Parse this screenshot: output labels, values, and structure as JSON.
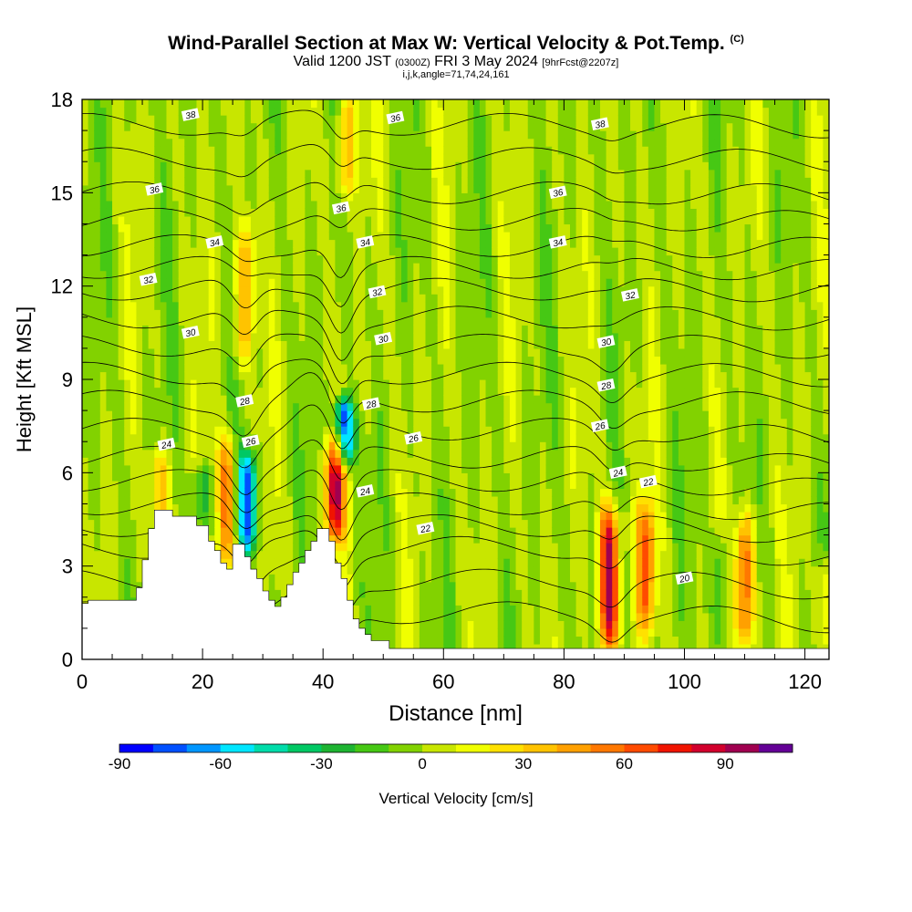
{
  "title": {
    "main": "Wind-Parallel Section at Max W: Vertical Velocity & Pot.Temp.",
    "copyright": "(C)",
    "valid_a": "Valid 1200 JST",
    "valid_utc": "(0300Z)",
    "valid_b": "FRI 3 May 2024",
    "forecast": "[9hrFcst@2207z]",
    "indices": "i,j,k,angle=71,74,24,161"
  },
  "chart_data": {
    "type": "heatmap",
    "xlabel": "Distance [nm]",
    "ylabel": "Height [Kft MSL]",
    "xlim": [
      0,
      124
    ],
    "ylim": [
      0,
      18
    ],
    "x_ticks": [
      0,
      20,
      40,
      60,
      80,
      100,
      120
    ],
    "y_ticks": [
      0,
      3,
      6,
      9,
      12,
      15,
      18
    ],
    "colorbar": {
      "label": "Vertical Velocity [cm/s]",
      "min": -90,
      "max": 110,
      "step": 10,
      "tick_values": [
        -90,
        -60,
        -30,
        0,
        30,
        60,
        90
      ],
      "colors": [
        "#0000ff",
        "#0050ff",
        "#0096ff",
        "#00e6ff",
        "#00dcaa",
        "#00c864",
        "#1eb432",
        "#46c814",
        "#82d200",
        "#c8e600",
        "#f0ff00",
        "#ffe100",
        "#ffc300",
        "#ffa000",
        "#ff7800",
        "#ff4b00",
        "#f01400",
        "#d2002d",
        "#a00050",
        "#640096"
      ]
    },
    "theta_contours_K": [
      20,
      22,
      24,
      26,
      28,
      30,
      32,
      34,
      36,
      38
    ],
    "theta_labels": [
      {
        "x": 18,
        "y": 17.5,
        "text": "38"
      },
      {
        "x": 52,
        "y": 17.4,
        "text": "36"
      },
      {
        "x": 86,
        "y": 17.2,
        "text": "38"
      },
      {
        "x": 12,
        "y": 15.1,
        "text": "36"
      },
      {
        "x": 43,
        "y": 14.5,
        "text": "36"
      },
      {
        "x": 79,
        "y": 15.0,
        "text": "36"
      },
      {
        "x": 22,
        "y": 13.4,
        "text": "34"
      },
      {
        "x": 47,
        "y": 13.4,
        "text": "34"
      },
      {
        "x": 79,
        "y": 13.4,
        "text": "34"
      },
      {
        "x": 11,
        "y": 12.2,
        "text": "32"
      },
      {
        "x": 49,
        "y": 11.8,
        "text": "32"
      },
      {
        "x": 91,
        "y": 11.7,
        "text": "32"
      },
      {
        "x": 18,
        "y": 10.5,
        "text": "30"
      },
      {
        "x": 50,
        "y": 10.3,
        "text": "30"
      },
      {
        "x": 87,
        "y": 10.2,
        "text": "30"
      },
      {
        "x": 27,
        "y": 8.3,
        "text": "28"
      },
      {
        "x": 48,
        "y": 8.2,
        "text": "28"
      },
      {
        "x": 87,
        "y": 8.8,
        "text": "28"
      },
      {
        "x": 14,
        "y": 6.9,
        "text": "24"
      },
      {
        "x": 28,
        "y": 7.0,
        "text": "26"
      },
      {
        "x": 55,
        "y": 7.1,
        "text": "26"
      },
      {
        "x": 86,
        "y": 7.5,
        "text": "26"
      },
      {
        "x": 47,
        "y": 5.4,
        "text": "24"
      },
      {
        "x": 89,
        "y": 6.0,
        "text": "24"
      },
      {
        "x": 94,
        "y": 5.7,
        "text": "22"
      },
      {
        "x": 57,
        "y": 4.2,
        "text": "22"
      },
      {
        "x": 100,
        "y": 2.6,
        "text": "20"
      }
    ],
    "updraft_features": [
      {
        "x": 13,
        "zmin": 4.5,
        "zmax": 6.5,
        "w": 35
      },
      {
        "x": 24,
        "zmin": 3.2,
        "zmax": 7.0,
        "w": 55
      },
      {
        "x": 27,
        "zmin": 9.5,
        "zmax": 14.0,
        "w": 40
      },
      {
        "x": 42,
        "zmin": 4.0,
        "zmax": 7.0,
        "w": 85
      },
      {
        "x": 44,
        "zmin": 15.0,
        "zmax": 18.0,
        "w": 40
      },
      {
        "x": 87.5,
        "zmin": 0.5,
        "zmax": 4.8,
        "w": 95
      },
      {
        "x": 93.5,
        "zmin": 1.0,
        "zmax": 5.0,
        "w": 60
      },
      {
        "x": 110,
        "zmin": 0.5,
        "zmax": 4.5,
        "w": 65
      },
      {
        "x": 124,
        "zmin": 0.5,
        "zmax": 3.0,
        "w": 35
      }
    ],
    "downdraft_features": [
      {
        "x": 27.5,
        "zmin": 3.5,
        "zmax": 6.5,
        "w": -75
      },
      {
        "x": 43.5,
        "zmin": 6.5,
        "zmax": 8.2,
        "w": -85
      },
      {
        "x": 20,
        "zmin": 4.5,
        "zmax": 6.0,
        "w": -30
      },
      {
        "x": 106,
        "zmin": 0.5,
        "zmax": 4.0,
        "w": -25
      }
    ],
    "terrain_kft": [
      [
        0,
        1.8
      ],
      [
        1,
        1.8
      ],
      [
        1,
        1.9
      ],
      [
        9,
        1.9
      ],
      [
        9,
        2.3
      ],
      [
        10,
        2.3
      ],
      [
        10,
        3.2
      ],
      [
        11,
        3.2
      ],
      [
        11,
        4.2
      ],
      [
        12,
        4.2
      ],
      [
        12,
        4.8
      ],
      [
        15,
        4.8
      ],
      [
        15,
        4.6
      ],
      [
        19,
        4.6
      ],
      [
        19,
        4.3
      ],
      [
        21,
        4.3
      ],
      [
        21,
        3.8
      ],
      [
        22,
        3.8
      ],
      [
        22,
        3.5
      ],
      [
        23,
        3.5
      ],
      [
        23,
        3.1
      ],
      [
        24,
        3.1
      ],
      [
        24,
        2.9
      ],
      [
        25,
        2.9
      ],
      [
        25,
        3.7
      ],
      [
        27,
        3.7
      ],
      [
        27,
        3.3
      ],
      [
        28,
        3.3
      ],
      [
        28,
        2.9
      ],
      [
        29,
        2.9
      ],
      [
        29,
        2.6
      ],
      [
        30,
        2.6
      ],
      [
        30,
        2.2
      ],
      [
        31,
        2.2
      ],
      [
        31,
        1.9
      ],
      [
        32,
        1.9
      ],
      [
        32,
        1.7
      ],
      [
        33,
        1.7
      ],
      [
        33,
        2.0
      ],
      [
        34,
        2.0
      ],
      [
        34,
        2.4
      ],
      [
        35,
        2.4
      ],
      [
        35,
        2.8
      ],
      [
        36,
        2.8
      ],
      [
        36,
        3.1
      ],
      [
        37,
        3.1
      ],
      [
        37,
        3.5
      ],
      [
        38,
        3.5
      ],
      [
        38,
        3.8
      ],
      [
        39,
        3.8
      ],
      [
        39,
        4.2
      ],
      [
        41,
        4.2
      ],
      [
        41,
        3.8
      ],
      [
        42,
        3.8
      ],
      [
        42,
        3.1
      ],
      [
        43,
        3.1
      ],
      [
        43,
        2.6
      ],
      [
        44,
        2.6
      ],
      [
        44,
        1.9
      ],
      [
        45,
        1.9
      ],
      [
        45,
        1.3
      ],
      [
        46,
        1.3
      ],
      [
        46,
        1.0
      ],
      [
        47,
        1.0
      ],
      [
        47,
        0.8
      ],
      [
        48,
        0.8
      ],
      [
        48,
        0.6
      ],
      [
        51,
        0.6
      ],
      [
        51,
        0.35
      ],
      [
        124,
        0.35
      ]
    ]
  }
}
